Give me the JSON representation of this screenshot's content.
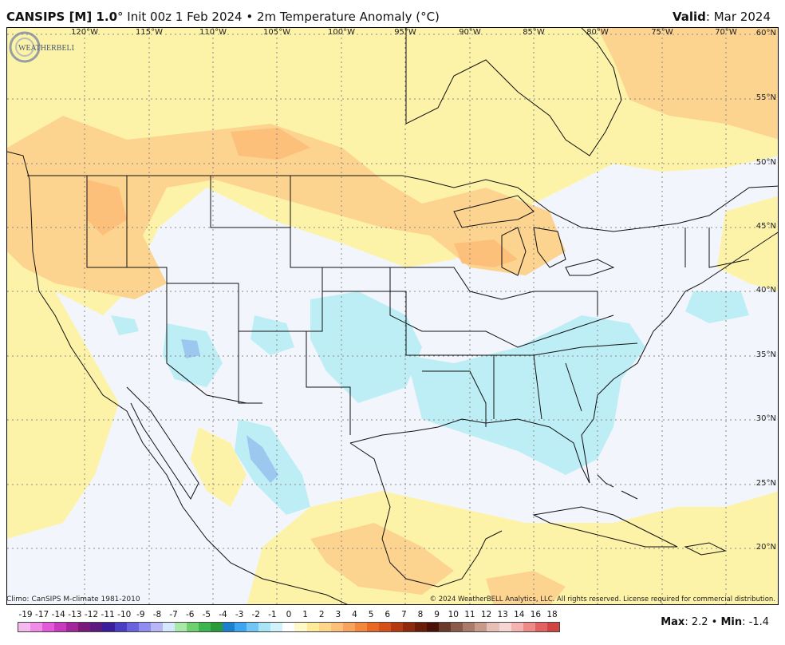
{
  "header": {
    "model": "CANSIPS [M] 1.0",
    "details": "° Init 00z 1 Feb 2024 • 2m Temperature Anomaly (°C)",
    "valid_label": "Valid",
    "valid_value": ": Mar 2024"
  },
  "map": {
    "lon_labels": [
      "120°W",
      "115°W",
      "110°W",
      "105°W",
      "100°W",
      "95°W",
      "90°W",
      "85°W",
      "80°W",
      "75°W",
      "70°W"
    ],
    "lat_labels": [
      "60°N",
      "55°N",
      "50°N",
      "45°N",
      "40°N",
      "35°N",
      "30°N",
      "25°N",
      "20°N"
    ],
    "logo_text": "WEATHERBELL"
  },
  "footer": {
    "climo": "Climo: CanSIPS M-climate 1981-2010",
    "copyright": "© 2024 WeatherBELL Analytics, LLC. All rights reserved. License required for commercial distribution."
  },
  "legend": {
    "ticks": [
      "-19",
      "-17",
      "-14",
      "-13",
      "-12",
      "-11",
      "-10",
      "-9",
      "-8",
      "-7",
      "-6",
      "-5",
      "-4",
      "-3",
      "-2",
      "-1",
      "0",
      "1",
      "2",
      "3",
      "4",
      "5",
      "6",
      "7",
      "8",
      "9",
      "10",
      "11",
      "12",
      "13",
      "14",
      "16",
      "18"
    ],
    "colors": [
      "#f5b8f0",
      "#ee8ce6",
      "#e35ad8",
      "#c93ac0",
      "#a3269c",
      "#7a1a7a",
      "#5a1a80",
      "#3b1f9a",
      "#4a3fc4",
      "#6a64dc",
      "#8f8ef0",
      "#b8b6f6",
      "#d6e8ff",
      "#a8e8a8",
      "#6fd06f",
      "#3eb44e",
      "#2a9a3a",
      "#1f7fcf",
      "#3ea6f0",
      "#72c6f6",
      "#a6e4f6",
      "#d2f2fb",
      "#ffffff",
      "#fff8c8",
      "#fdeb9a",
      "#fdd68a",
      "#fcc07a",
      "#f8a45e",
      "#f2883e",
      "#e86a22",
      "#d4521a",
      "#b43a12",
      "#8e2a0c",
      "#6a1e08",
      "#4a1206",
      "#6a3a2a",
      "#8a5a4a",
      "#aa7a6a",
      "#c89a8a",
      "#e6c0b6",
      "#f6d6d2",
      "#f6b2b0",
      "#ef8a8a",
      "#e26262",
      "#d04444"
    ],
    "max_label": "Max",
    "max_value": ": 2.2",
    "sep": " • ",
    "min_label": "Min",
    "min_value": ": -1.4"
  }
}
